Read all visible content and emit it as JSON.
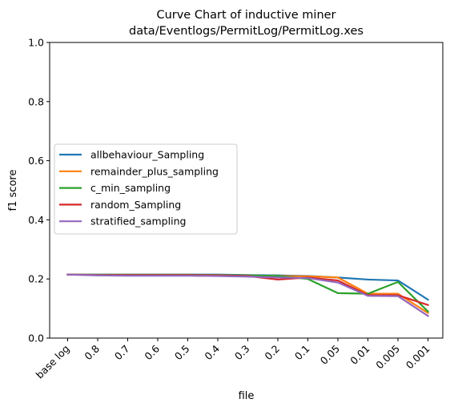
{
  "chart_data": {
    "type": "line",
    "title_lines": [
      "Curve Chart of inductive miner",
      "data/Eventlogs/PermitLog/PermitLog.xes"
    ],
    "xlabel": "file",
    "ylabel": "f1 score",
    "ylim": [
      0.0,
      1.0
    ],
    "yticks": [
      "0.0",
      "0.2",
      "0.4",
      "0.6",
      "0.8",
      "1.0"
    ],
    "ytick_values": [
      0.0,
      0.2,
      0.4,
      0.6,
      0.8,
      1.0
    ],
    "categories": [
      "base log",
      "0.8",
      "0.7",
      "0.6",
      "0.5",
      "0.4",
      "0.3",
      "0.2",
      "0.1",
      "0.05",
      "0.01",
      "0.005",
      "0.001"
    ],
    "grid": false,
    "legend_position": "center-left",
    "series": [
      {
        "name": "allbehaviour_Sampling",
        "color": "#1f77b4",
        "values": [
          0.215,
          0.215,
          0.215,
          0.215,
          0.215,
          0.215,
          0.213,
          0.212,
          0.21,
          0.205,
          0.198,
          0.195,
          0.13
        ]
      },
      {
        "name": "remainder_plus_sampling",
        "color": "#ff7f0e",
        "values": [
          0.215,
          0.214,
          0.214,
          0.214,
          0.214,
          0.213,
          0.212,
          0.21,
          0.209,
          0.205,
          0.15,
          0.15,
          0.085
        ]
      },
      {
        "name": "c_min_sampling",
        "color": "#2ca02c",
        "values": [
          0.215,
          0.214,
          0.214,
          0.214,
          0.214,
          0.213,
          0.212,
          0.21,
          0.2,
          0.152,
          0.15,
          0.19,
          0.09
        ]
      },
      {
        "name": "random_Sampling",
        "color": "#d62728",
        "values": [
          0.215,
          0.213,
          0.213,
          0.213,
          0.213,
          0.212,
          0.21,
          0.198,
          0.205,
          0.195,
          0.145,
          0.145,
          0.112
        ]
      },
      {
        "name": "stratified_sampling",
        "color": "#9467bd",
        "values": [
          0.215,
          0.212,
          0.211,
          0.211,
          0.211,
          0.21,
          0.208,
          0.205,
          0.203,
          0.188,
          0.143,
          0.142,
          0.075
        ]
      }
    ]
  }
}
